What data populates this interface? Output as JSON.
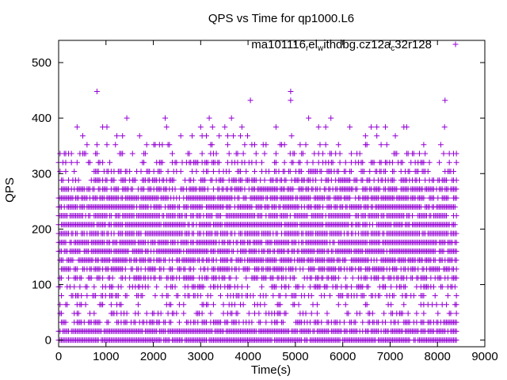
{
  "chart_data": {
    "type": "scatter",
    "title": "QPS vs Time for qp1000.L6",
    "xlabel": "Time(s)",
    "ylabel": "QPS",
    "xlim": [
      0,
      9000
    ],
    "ylim": [
      -12,
      540
    ],
    "xticks": [
      "0",
      "1000",
      "2000",
      "3000",
      "4000",
      "5000",
      "6000",
      "7000",
      "8000",
      "9000"
    ],
    "yticks": [
      "0",
      "100",
      "200",
      "300",
      "400",
      "500"
    ],
    "grid": false,
    "legend_position": "top-right",
    "marker": "plus",
    "series": [
      {
        "name_parts": [
          {
            "text": "ma101116",
            "sub": false
          },
          {
            "text": "r",
            "sub": true
          },
          {
            "text": "el",
            "sub": false
          },
          {
            "text": "w",
            "sub": true
          },
          {
            "text": "ithdbg.cz12a",
            "sub": false
          },
          {
            "text": "c",
            "sub": true
          },
          {
            "text": "32r128",
            "sub": false
          }
        ],
        "color": "#9400d3",
        "x_start": 0,
        "x_end": 8400,
        "x_step": 30,
        "y_levels": [
          0,
          16,
          32,
          48,
          64,
          80,
          96,
          112,
          128,
          144,
          160,
          176,
          192,
          208,
          224,
          240,
          256,
          272,
          288,
          304,
          320,
          336,
          352,
          368,
          384,
          400,
          432,
          448
        ],
        "y_level_density": [
          0.95,
          0.9,
          0.55,
          0.25,
          0.2,
          0.3,
          0.4,
          0.55,
          0.7,
          0.8,
          0.85,
          0.85,
          0.85,
          0.85,
          0.85,
          0.85,
          0.8,
          0.7,
          0.55,
          0.4,
          0.3,
          0.2,
          0.12,
          0.06,
          0.03,
          0.015,
          0.004,
          0.004
        ],
        "outliers": [
          {
            "x": 4900,
            "y": 448
          },
          {
            "x": 4900,
            "y": 432
          },
          {
            "x": 4050,
            "y": 432
          },
          {
            "x": 3650,
            "y": 400
          },
          {
            "x": 5750,
            "y": 400
          },
          {
            "x": 3250,
            "y": 384
          },
          {
            "x": 6150,
            "y": 384
          },
          {
            "x": 7350,
            "y": 384
          },
          {
            "x": 8150,
            "y": 384
          }
        ]
      }
    ]
  }
}
